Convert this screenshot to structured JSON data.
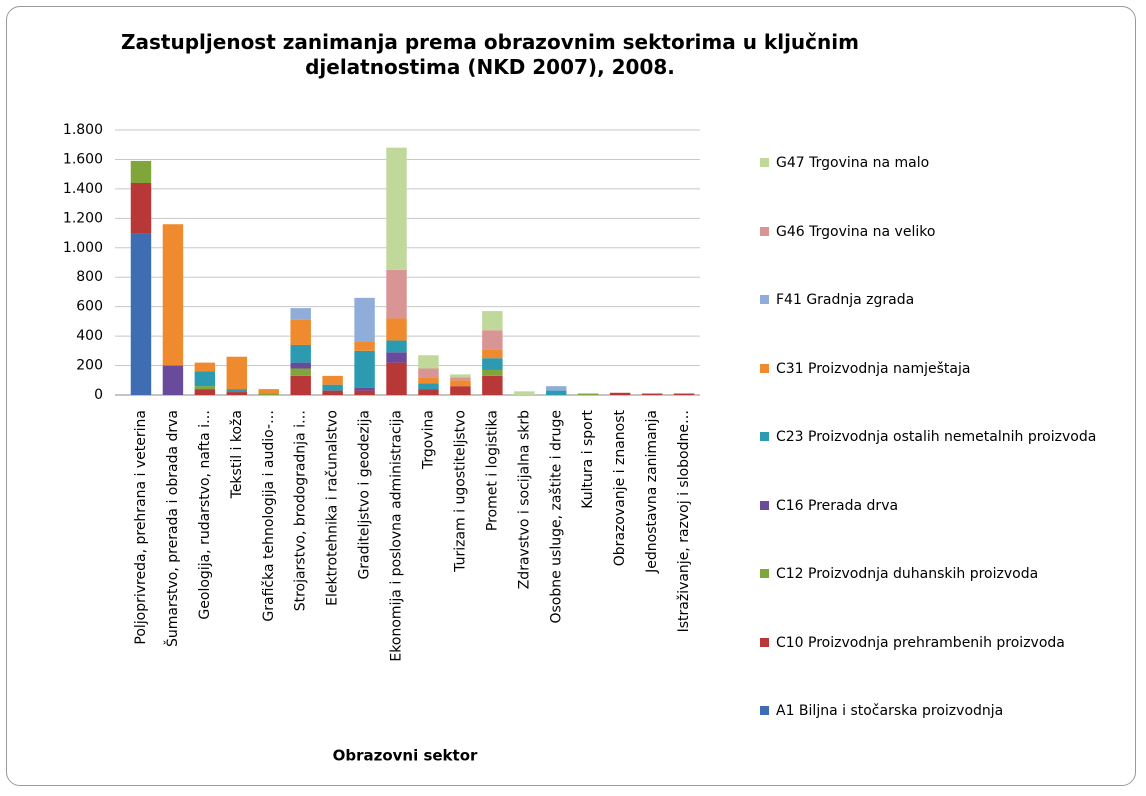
{
  "chart_data": {
    "type": "bar",
    "stacked": true,
    "title": "Zastupljenost zanimanja prema obrazovnim sektorima u ključnim djelatnostima (NKD 2007), 2008.",
    "x_label": "Obrazovni sektor",
    "categories": [
      "Poljoprivreda, prehrana i veterina",
      "Šumarstvo, prerada i obrada drva",
      "Geologija, rudarstvo, nafta i…",
      "Tekstil i koža",
      "Grafička tehnologija i audio-…",
      "Strojarstvo, brodogradnja i…",
      "Elektrotehnika i računalstvo",
      "Graditeljstvo i geodezija",
      "Ekonomija i poslovna administracija",
      "Trgovina",
      "Turizam i ugostiteljstvo",
      "Promet i logistika",
      "Zdravstvo i socijalna skrb",
      "Osobne usluge, zaštite i druge",
      "Kultura i sport",
      "Obrazovanje i znanost",
      "Jednostavna zanimanja",
      "Istraživanje, razvoj i slobodne…"
    ],
    "series": [
      {
        "name": "A1 Biljna i stočarska proizvodnja",
        "color": "#3e6db3",
        "values": [
          1100,
          0,
          0,
          0,
          0,
          0,
          0,
          0,
          0,
          0,
          0,
          0,
          0,
          0,
          0,
          0,
          0,
          0
        ]
      },
      {
        "name": "C10 Proizvodnja prehrambenih proizvoda",
        "color": "#b83838",
        "values": [
          340,
          0,
          40,
          20,
          0,
          130,
          30,
          30,
          220,
          40,
          60,
          130,
          0,
          0,
          0,
          15,
          10,
          10
        ]
      },
      {
        "name": "C12 Proizvodnja duhanskih proizvoda",
        "color": "#80a53a",
        "values": [
          150,
          0,
          20,
          0,
          10,
          50,
          0,
          0,
          0,
          0,
          0,
          40,
          0,
          0,
          10,
          0,
          0,
          0
        ]
      },
      {
        "name": "C16 Prerada drva",
        "color": "#6a4a9a",
        "values": [
          0,
          200,
          0,
          0,
          0,
          40,
          0,
          20,
          70,
          0,
          0,
          0,
          0,
          0,
          0,
          0,
          0,
          0
        ]
      },
      {
        "name": "C23 Proizvodnja ostalih nemetalnih proizvoda",
        "color": "#2c9ab0",
        "values": [
          0,
          0,
          100,
          20,
          0,
          120,
          40,
          250,
          80,
          40,
          0,
          80,
          0,
          30,
          0,
          0,
          0,
          0
        ]
      },
      {
        "name": "C31 Proizvodnja namještaja",
        "color": "#ef8a2f",
        "values": [
          0,
          960,
          60,
          220,
          30,
          170,
          60,
          60,
          150,
          40,
          40,
          60,
          0,
          0,
          0,
          0,
          0,
          0
        ]
      },
      {
        "name": "F41 Gradnja zgrada",
        "color": "#8fadd8",
        "values": [
          0,
          0,
          0,
          0,
          0,
          80,
          0,
          300,
          0,
          0,
          0,
          0,
          0,
          30,
          0,
          0,
          0,
          0
        ]
      },
      {
        "name": "G46 Trgovina na veliko",
        "color": "#d99594",
        "values": [
          0,
          0,
          0,
          0,
          0,
          0,
          0,
          0,
          330,
          60,
          20,
          130,
          0,
          0,
          0,
          0,
          0,
          0
        ]
      },
      {
        "name": "G47 Trgovina na malo",
        "color": "#c0d99a",
        "values": [
          0,
          0,
          0,
          0,
          0,
          0,
          0,
          0,
          830,
          90,
          20,
          130,
          25,
          0,
          0,
          0,
          0,
          0
        ]
      }
    ],
    "ylim": [
      0,
      1800
    ],
    "yticks": [
      0,
      200,
      400,
      600,
      800,
      {
        "value": 1000,
        "label": "1.000"
      },
      {
        "value": 1200,
        "label": "1.200"
      },
      {
        "value": 1400,
        "label": "1.400"
      },
      {
        "value": 1600,
        "label": "1.600"
      },
      {
        "value": 1800,
        "label": "1.800"
      }
    ],
    "grid": true
  }
}
